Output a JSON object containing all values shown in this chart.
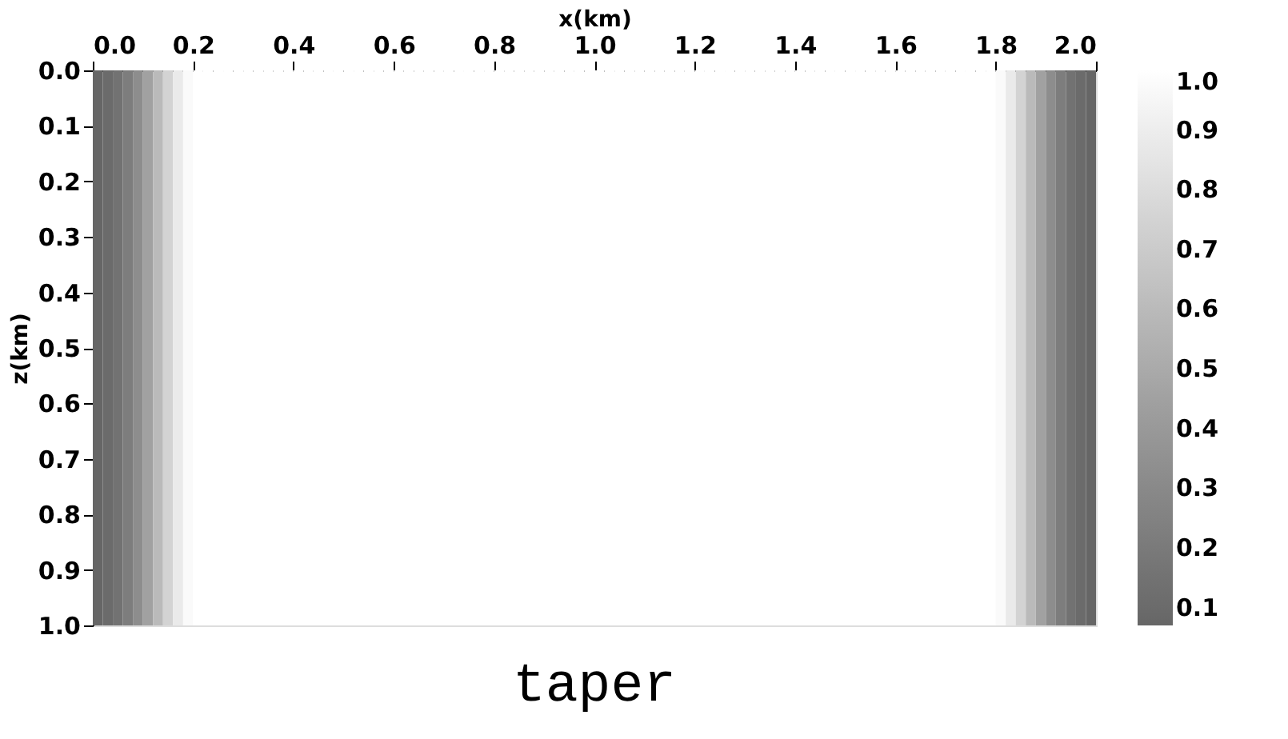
{
  "chart_data": {
    "type": "heatmap",
    "xlabel": "x(km)",
    "ylabel": "z(km)",
    "annotations": [
      "taper"
    ],
    "x": [
      0.01,
      0.03,
      0.05,
      0.07,
      0.09,
      0.11,
      0.13,
      0.15,
      0.17,
      0.19,
      0.21,
      0.23,
      0.25,
      0.27,
      0.29,
      0.31,
      0.33,
      0.35,
      0.37,
      0.39,
      0.41,
      0.43,
      0.45,
      0.47,
      0.49,
      0.51,
      0.53,
      0.55,
      0.57,
      0.59,
      0.61,
      0.63,
      0.65,
      0.67,
      0.69,
      0.71,
      0.73,
      0.75,
      0.77,
      0.79,
      0.81,
      0.83,
      0.85,
      0.87,
      0.89,
      0.91,
      0.93,
      0.95,
      0.97,
      0.99,
      1.01,
      1.03,
      1.05,
      1.07,
      1.09,
      1.11,
      1.13,
      1.15,
      1.17,
      1.19,
      1.21,
      1.23,
      1.25,
      1.27,
      1.29,
      1.31,
      1.33,
      1.35,
      1.37,
      1.39,
      1.41,
      1.43,
      1.45,
      1.47,
      1.49,
      1.51,
      1.53,
      1.55,
      1.57,
      1.59,
      1.61,
      1.63,
      1.65,
      1.67,
      1.69,
      1.71,
      1.73,
      1.75,
      1.77,
      1.79,
      1.81,
      1.83,
      1.85,
      1.87,
      1.89,
      1.91,
      1.93,
      1.95,
      1.97,
      1.99
    ],
    "cells": [
      [
        0.07,
        0.1,
        0.15,
        0.22,
        0.32,
        0.45,
        0.6,
        0.75,
        0.88,
        0.97,
        1,
        1,
        1,
        1,
        1,
        1,
        1,
        1,
        1,
        1,
        1,
        1,
        1,
        1,
        1,
        1,
        1,
        1,
        1,
        1,
        1,
        1,
        1,
        1,
        1,
        1,
        1,
        1,
        1,
        1,
        1,
        1,
        1,
        1,
        1,
        1,
        1,
        1,
        1,
        1,
        1,
        1,
        1,
        1,
        1,
        1,
        1,
        1,
        1,
        1,
        1,
        1,
        1,
        1,
        1,
        1,
        1,
        1,
        1,
        1,
        1,
        1,
        1,
        1,
        1,
        1,
        1,
        1,
        1,
        1,
        1,
        1,
        1,
        1,
        1,
        1,
        1,
        1,
        1,
        1,
        0.97,
        0.88,
        0.75,
        0.6,
        0.45,
        0.32,
        0.22,
        0.15,
        0.1,
        0.07
      ]
    ],
    "xlim": [
      0.0,
      2.0
    ],
    "xticks": [
      {
        "value": 0,
        "label": "0.0"
      },
      0.2,
      0.4,
      0.6,
      0.8,
      {
        "value": 1,
        "label": "1.0"
      },
      1.2,
      1.4,
      1.6,
      1.8,
      {
        "value": 2,
        "label": "2.0"
      }
    ],
    "ylim": [
      1.0,
      0.0
    ],
    "yticks": [
      {
        "value": 0,
        "label": "0.0"
      },
      0.1,
      0.2,
      0.3,
      0.4,
      0.5,
      0.6,
      0.7,
      0.8,
      0.9,
      {
        "value": 1,
        "label": "1.0"
      }
    ],
    "clim": [
      0.07,
      1.0
    ],
    "cticks": [
      0.1,
      0.2,
      0.3,
      0.4,
      0.5,
      0.6,
      0.7,
      0.8,
      0.9,
      {
        "value": 1,
        "label": "1.0"
      }
    ]
  }
}
